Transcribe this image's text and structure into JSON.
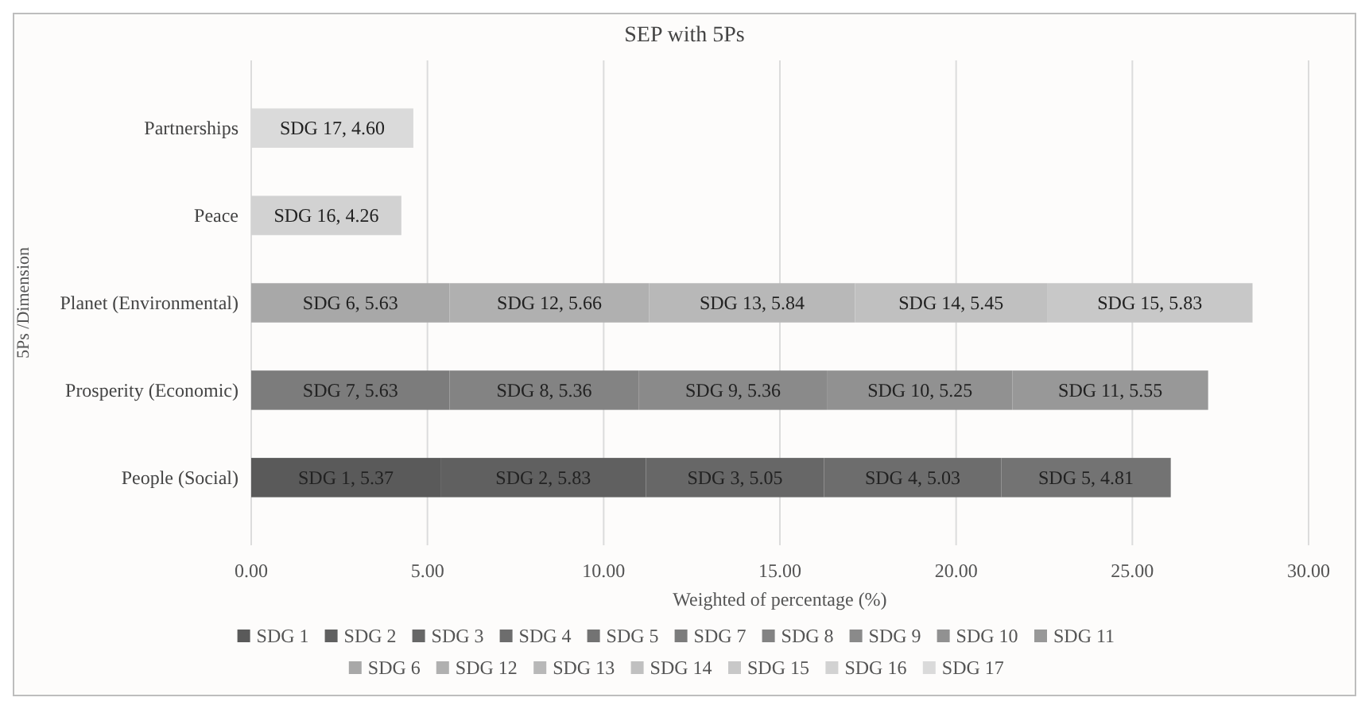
{
  "chart_data": {
    "type": "bar",
    "orientation": "horizontal",
    "stacked": true,
    "title": "SEP with 5Ps",
    "xlabel": "Weighted of percentage (%)",
    "ylabel": "5Ps /Dimension",
    "categories": [
      "Partnerships",
      "Peace",
      "Planet (Environmental)",
      "Prosperity (Economic)",
      "People (Social)"
    ],
    "xlim": [
      0,
      30
    ],
    "xticks": [
      {
        "value": 0,
        "label": "0.00"
      },
      {
        "value": 5,
        "label": "5.00"
      },
      {
        "value": 10,
        "label": "10.00"
      },
      {
        "value": 15,
        "label": "15.00"
      },
      {
        "value": 20,
        "label": "20.00"
      },
      {
        "value": 25,
        "label": "25.00"
      },
      {
        "value": 30,
        "label": "30.00"
      }
    ],
    "grid": "x",
    "legend": "bottom",
    "series": [
      {
        "name": "SDG 1",
        "color": "#5a5a5a",
        "values": [
          null,
          null,
          null,
          null,
          5.37
        ],
        "value_labels": [
          null,
          null,
          null,
          null,
          "SDG 1, 5.37"
        ]
      },
      {
        "name": "SDG 2",
        "color": "#606060",
        "values": [
          null,
          null,
          null,
          null,
          5.83
        ],
        "value_labels": [
          null,
          null,
          null,
          null,
          "SDG 2, 5.83"
        ]
      },
      {
        "name": "SDG 3",
        "color": "#676767",
        "values": [
          null,
          null,
          null,
          null,
          5.05
        ],
        "value_labels": [
          null,
          null,
          null,
          null,
          "SDG 3, 5.05"
        ]
      },
      {
        "name": "SDG 4",
        "color": "#6d6d6d",
        "values": [
          null,
          null,
          null,
          null,
          5.03
        ],
        "value_labels": [
          null,
          null,
          null,
          null,
          "SDG 4, 5.03"
        ]
      },
      {
        "name": "SDG 5",
        "color": "#737373",
        "values": [
          null,
          null,
          null,
          null,
          4.81
        ],
        "value_labels": [
          null,
          null,
          null,
          null,
          "SDG 5, 4.81"
        ]
      },
      {
        "name": "SDG 7",
        "color": "#7c7c7c",
        "values": [
          null,
          null,
          null,
          5.63,
          null
        ],
        "value_labels": [
          null,
          null,
          null,
          "SDG 7, 5.63",
          null
        ]
      },
      {
        "name": "SDG 8",
        "color": "#838383",
        "values": [
          null,
          null,
          null,
          5.36,
          null
        ],
        "value_labels": [
          null,
          null,
          null,
          "SDG 8, 5.36",
          null
        ]
      },
      {
        "name": "SDG 9",
        "color": "#8a8a8a",
        "values": [
          null,
          null,
          null,
          5.36,
          null
        ],
        "value_labels": [
          null,
          null,
          null,
          "SDG 9, 5.36",
          null
        ]
      },
      {
        "name": "SDG 10",
        "color": "#919191",
        "values": [
          null,
          null,
          null,
          5.25,
          null
        ],
        "value_labels": [
          null,
          null,
          null,
          "SDG 10, 5.25",
          null
        ]
      },
      {
        "name": "SDG 11",
        "color": "#989898",
        "values": [
          null,
          null,
          null,
          5.55,
          null
        ],
        "value_labels": [
          null,
          null,
          null,
          "SDG 11, 5.55",
          null
        ]
      },
      {
        "name": "SDG 6",
        "color": "#a8a8a8",
        "values": [
          null,
          null,
          5.63,
          null,
          null
        ],
        "value_labels": [
          null,
          null,
          "SDG 6, 5.63",
          null,
          null
        ]
      },
      {
        "name": "SDG 12",
        "color": "#b0b0b0",
        "values": [
          null,
          null,
          5.66,
          null,
          null
        ],
        "value_labels": [
          null,
          null,
          "SDG 12, 5.66",
          null,
          null
        ]
      },
      {
        "name": "SDG 13",
        "color": "#b8b8b8",
        "values": [
          null,
          null,
          5.84,
          null,
          null
        ],
        "value_labels": [
          null,
          null,
          "SDG 13, 5.84",
          null,
          null
        ]
      },
      {
        "name": "SDG 14",
        "color": "#c0c0c0",
        "values": [
          null,
          null,
          5.45,
          null,
          null
        ],
        "value_labels": [
          null,
          null,
          "SDG 14, 5.45",
          null,
          null
        ]
      },
      {
        "name": "SDG 15",
        "color": "#c8c8c8",
        "values": [
          null,
          null,
          5.83,
          null,
          null
        ],
        "value_labels": [
          null,
          null,
          "SDG 15, 5.83",
          null,
          null
        ]
      },
      {
        "name": "SDG 16",
        "color": "#d2d2d2",
        "values": [
          null,
          4.26,
          null,
          null,
          null
        ],
        "value_labels": [
          null,
          "SDG 16, 4.26",
          null,
          null,
          null
        ]
      },
      {
        "name": "SDG 17",
        "color": "#dadada",
        "values": [
          4.6,
          null,
          null,
          null,
          null
        ],
        "value_labels": [
          "SDG 17, 4.60",
          null,
          null,
          null,
          null
        ]
      }
    ]
  }
}
